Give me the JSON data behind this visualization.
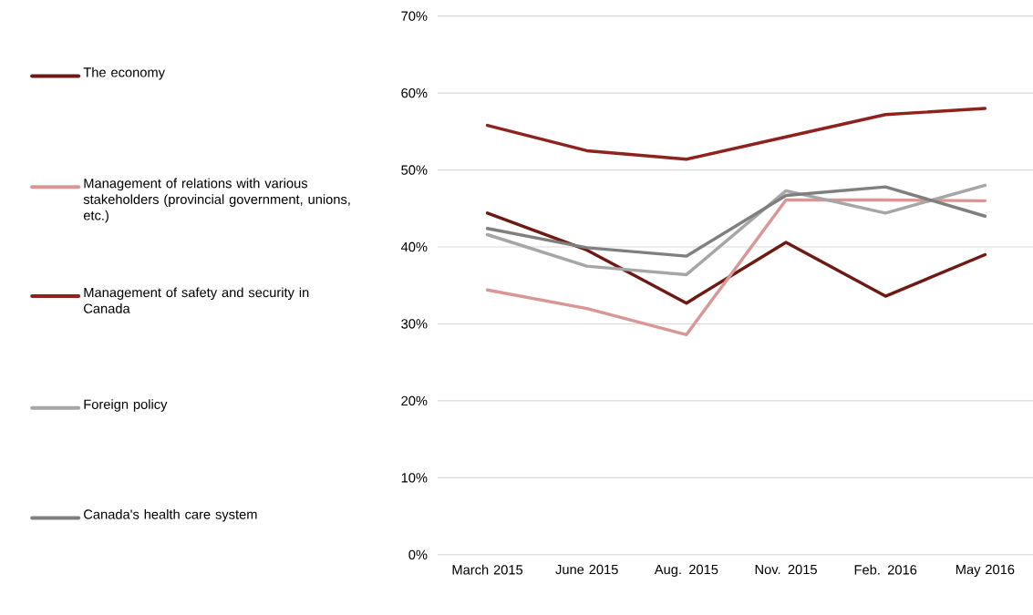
{
  "chart_data": {
    "type": "line",
    "categories": [
      "March 2015",
      "June 2015",
      "Aug. 2015",
      "Nov. 2015",
      "Feb. 2016",
      "May 2016"
    ],
    "series": [
      {
        "name": "The economy",
        "color": "#6e1a14",
        "values": [
          44.4,
          39.6,
          32.7,
          40.6,
          33.6,
          39.0
        ]
      },
      {
        "name": "Management of relations with various stakeholders (provincial government, unions, etc.)",
        "color": "#d99694",
        "values": [
          34.4,
          32.0,
          28.6,
          46.1,
          46.1,
          46.0
        ]
      },
      {
        "name": "Management of safety and security in Canada",
        "color": "#8e231e",
        "values": [
          55.8,
          52.5,
          51.4,
          54.3,
          57.2,
          58.0
        ]
      },
      {
        "name": "Foreign policy",
        "color": "#a6a6a6",
        "values": [
          41.6,
          37.5,
          36.4,
          47.3,
          44.4,
          48.0
        ]
      },
      {
        "name": "Canada's health care system",
        "color": "#7f7f7f",
        "values": [
          42.4,
          39.9,
          38.8,
          46.7,
          47.8,
          44.0
        ]
      }
    ],
    "ylim": [
      0,
      70
    ],
    "yticks": [
      {
        "value": 0,
        "label": "0%"
      },
      {
        "value": 10,
        "label": "10%"
      },
      {
        "value": 20,
        "label": "20%"
      },
      {
        "value": 30,
        "label": "30%"
      },
      {
        "value": 40,
        "label": "40%"
      },
      {
        "value": 50,
        "label": "50%"
      },
      {
        "value": 60,
        "label": "60%"
      },
      {
        "value": 70,
        "label": "70%"
      }
    ],
    "grid": "y",
    "legend": "left",
    "marker": "none",
    "line_style": "solid"
  }
}
